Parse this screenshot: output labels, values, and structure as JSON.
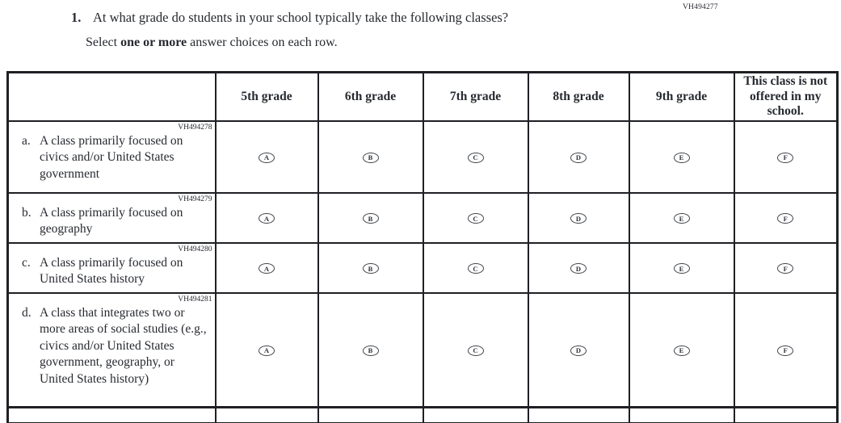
{
  "page_code": "VH494277",
  "question": {
    "number": "1.",
    "text": "At what grade do students in your school typically take the following classes?",
    "instruction": {
      "prefix": "Select ",
      "bold": "one or more",
      "suffix": " answer choices on each row."
    }
  },
  "table": {
    "column_headers": [
      "5th grade",
      "6th grade",
      "7th grade",
      "8th grade",
      "9th grade",
      "This class is not offered in my school."
    ],
    "rows": [
      {
        "code": "VH494278",
        "letter": "a.",
        "label": "A class primarily focused on civics and/or United States government",
        "options": [
          "A",
          "B",
          "C",
          "D",
          "E",
          "F"
        ]
      },
      {
        "code": "VH494279",
        "letter": "b.",
        "label": "A class primarily focused on geography",
        "options": [
          "A",
          "B",
          "C",
          "D",
          "E",
          "F"
        ]
      },
      {
        "code": "VH494280",
        "letter": "c.",
        "label": "A class primarily focused on United States history",
        "options": [
          "A",
          "B",
          "C",
          "D",
          "E",
          "F"
        ]
      },
      {
        "code": "VH494281",
        "letter": "d.",
        "label": "A class that integrates two or more areas of social studies (e.g., civics and/or United States government, geography, or United States history)",
        "options": [
          "A",
          "B",
          "C",
          "D",
          "E",
          "F"
        ]
      }
    ]
  },
  "colors": {
    "ink": "#272a30",
    "border": "#1e2024"
  }
}
